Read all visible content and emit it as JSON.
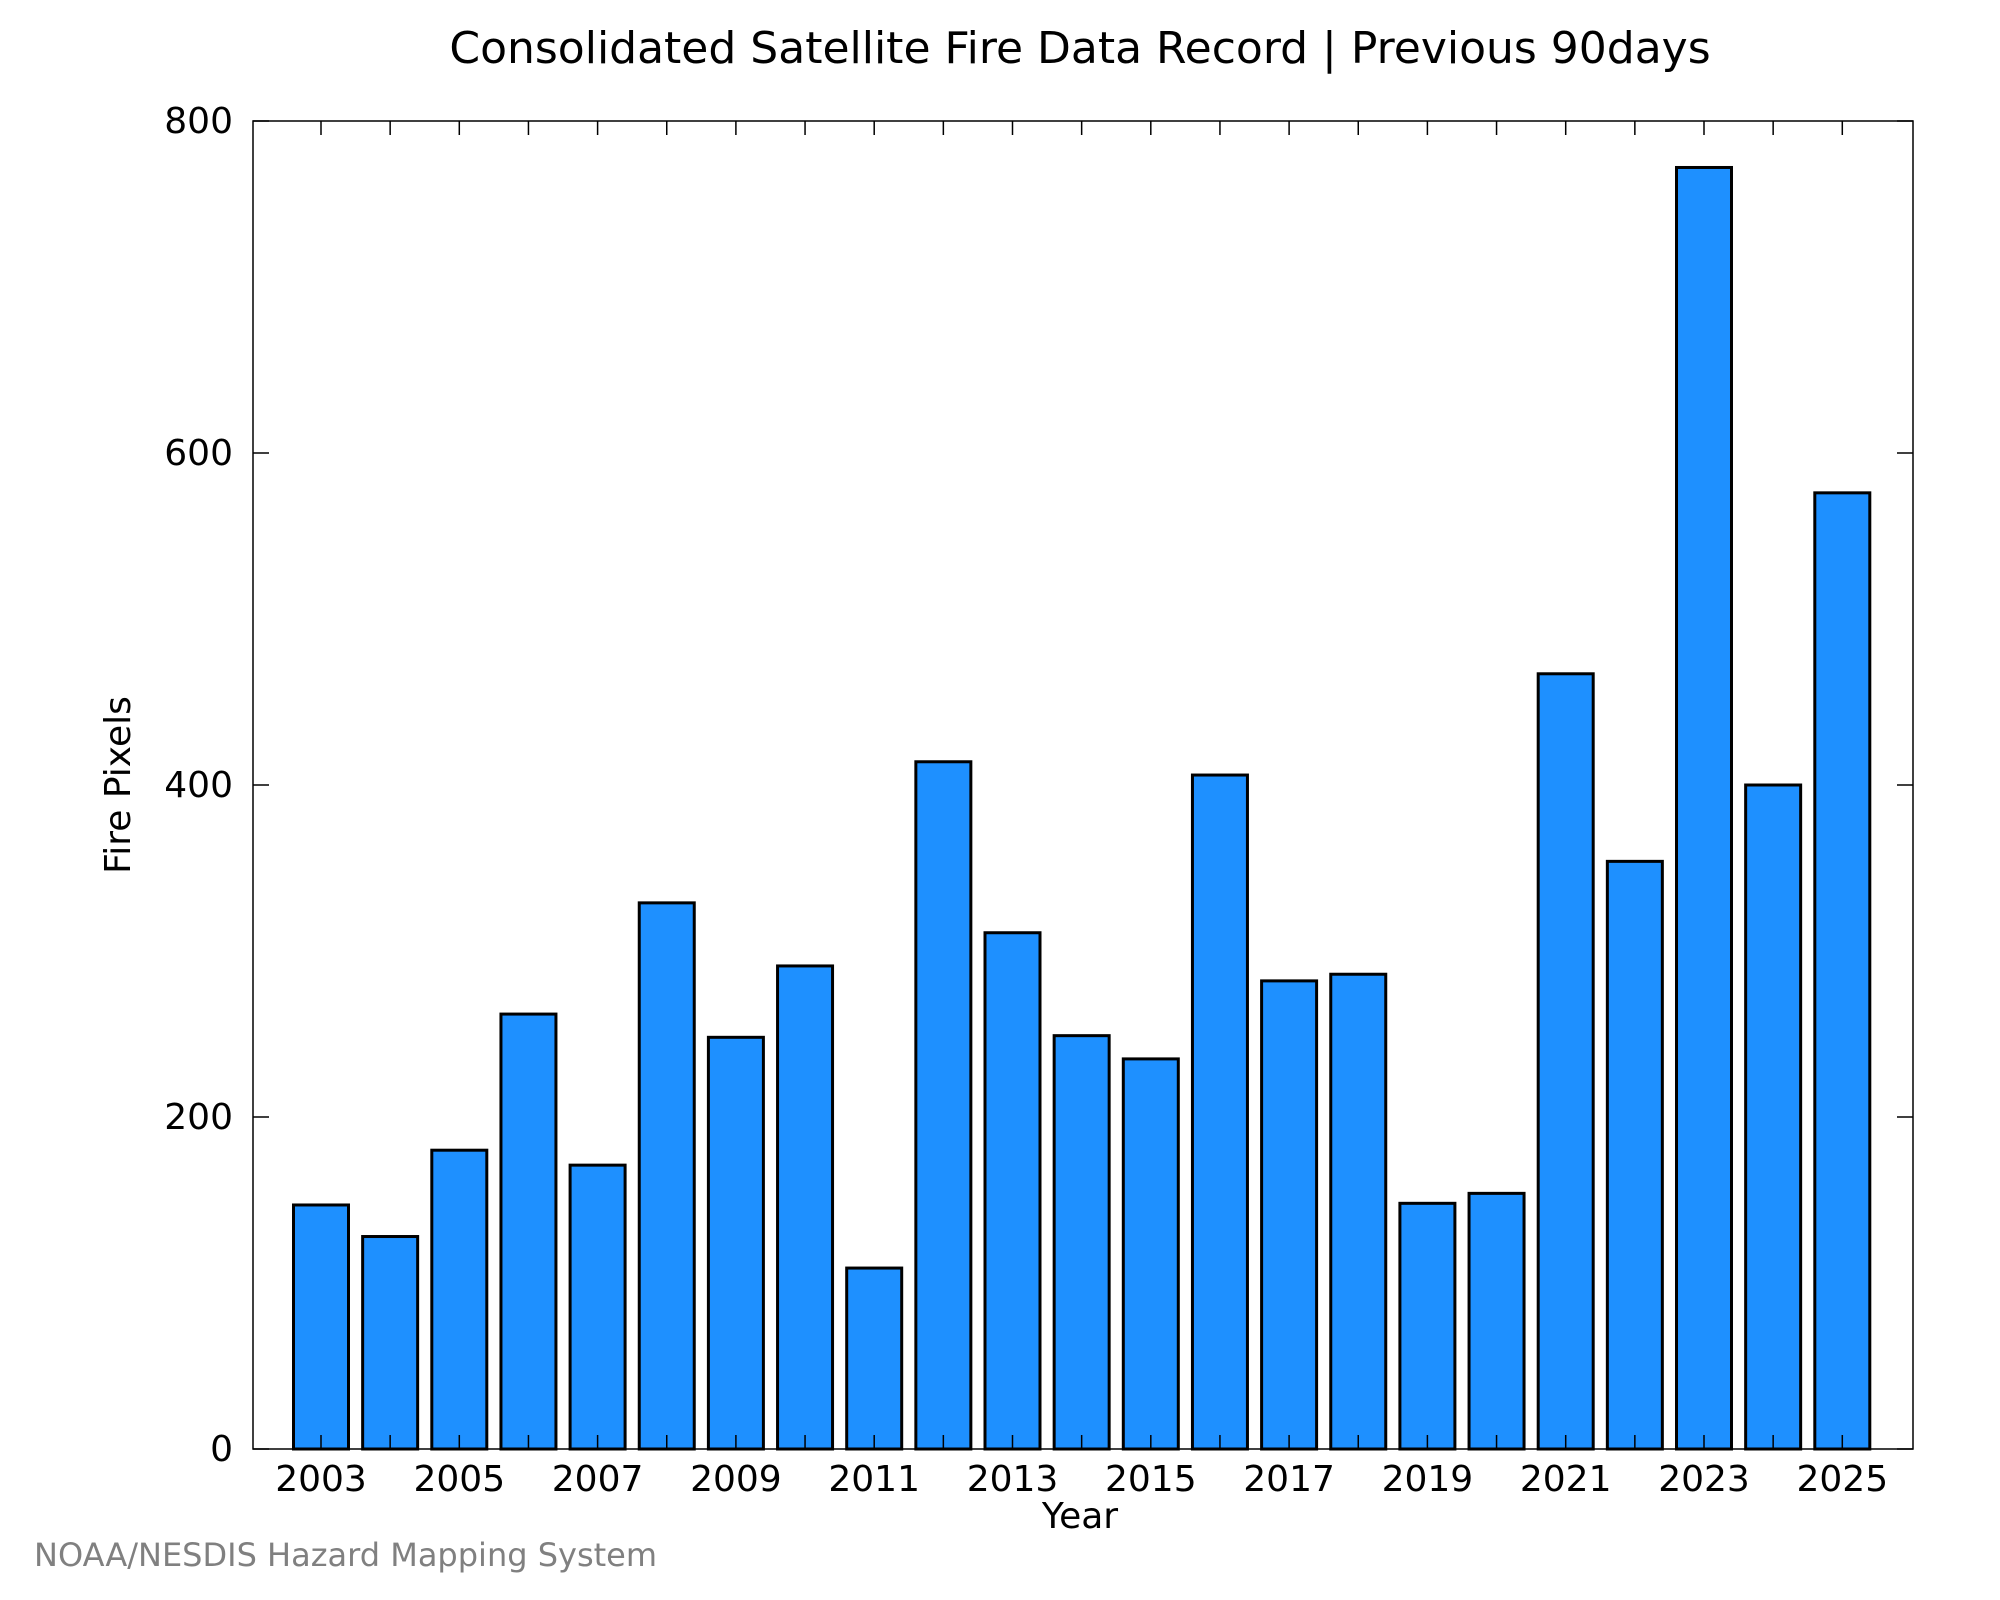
{
  "chart_data": {
    "type": "bar",
    "title": "Consolidated Satellite Fire Data Record | Previous 90days",
    "xlabel": "Year",
    "ylabel": "Fire Pixels",
    "categories": [
      "2003",
      "2004",
      "2005",
      "2006",
      "2007",
      "2008",
      "2009",
      "2010",
      "2011",
      "2012",
      "2013",
      "2014",
      "2015",
      "2016",
      "2017",
      "2018",
      "2019",
      "2020",
      "2021",
      "2022",
      "2023",
      "2024",
      "2025"
    ],
    "values": [
      147,
      128,
      180,
      262,
      171,
      329,
      248,
      291,
      109,
      414,
      311,
      249,
      235,
      406,
      282,
      286,
      148,
      154,
      467,
      354,
      772,
      400,
      576
    ],
    "x_tick_labels": [
      "2003",
      "2005",
      "2007",
      "2009",
      "2011",
      "2013",
      "2015",
      "2017",
      "2019",
      "2021",
      "2023",
      "2025"
    ],
    "y_tick_labels": [
      "0",
      "200",
      "400",
      "600",
      "800"
    ],
    "ylim": [
      0,
      800
    ],
    "grid": false,
    "legend": false,
    "colors": {
      "bar_fill": "#1e90ff",
      "bar_stroke": "#000000"
    }
  },
  "footer": {
    "credit": "NOAA/NESDIS Hazard Mapping System"
  }
}
